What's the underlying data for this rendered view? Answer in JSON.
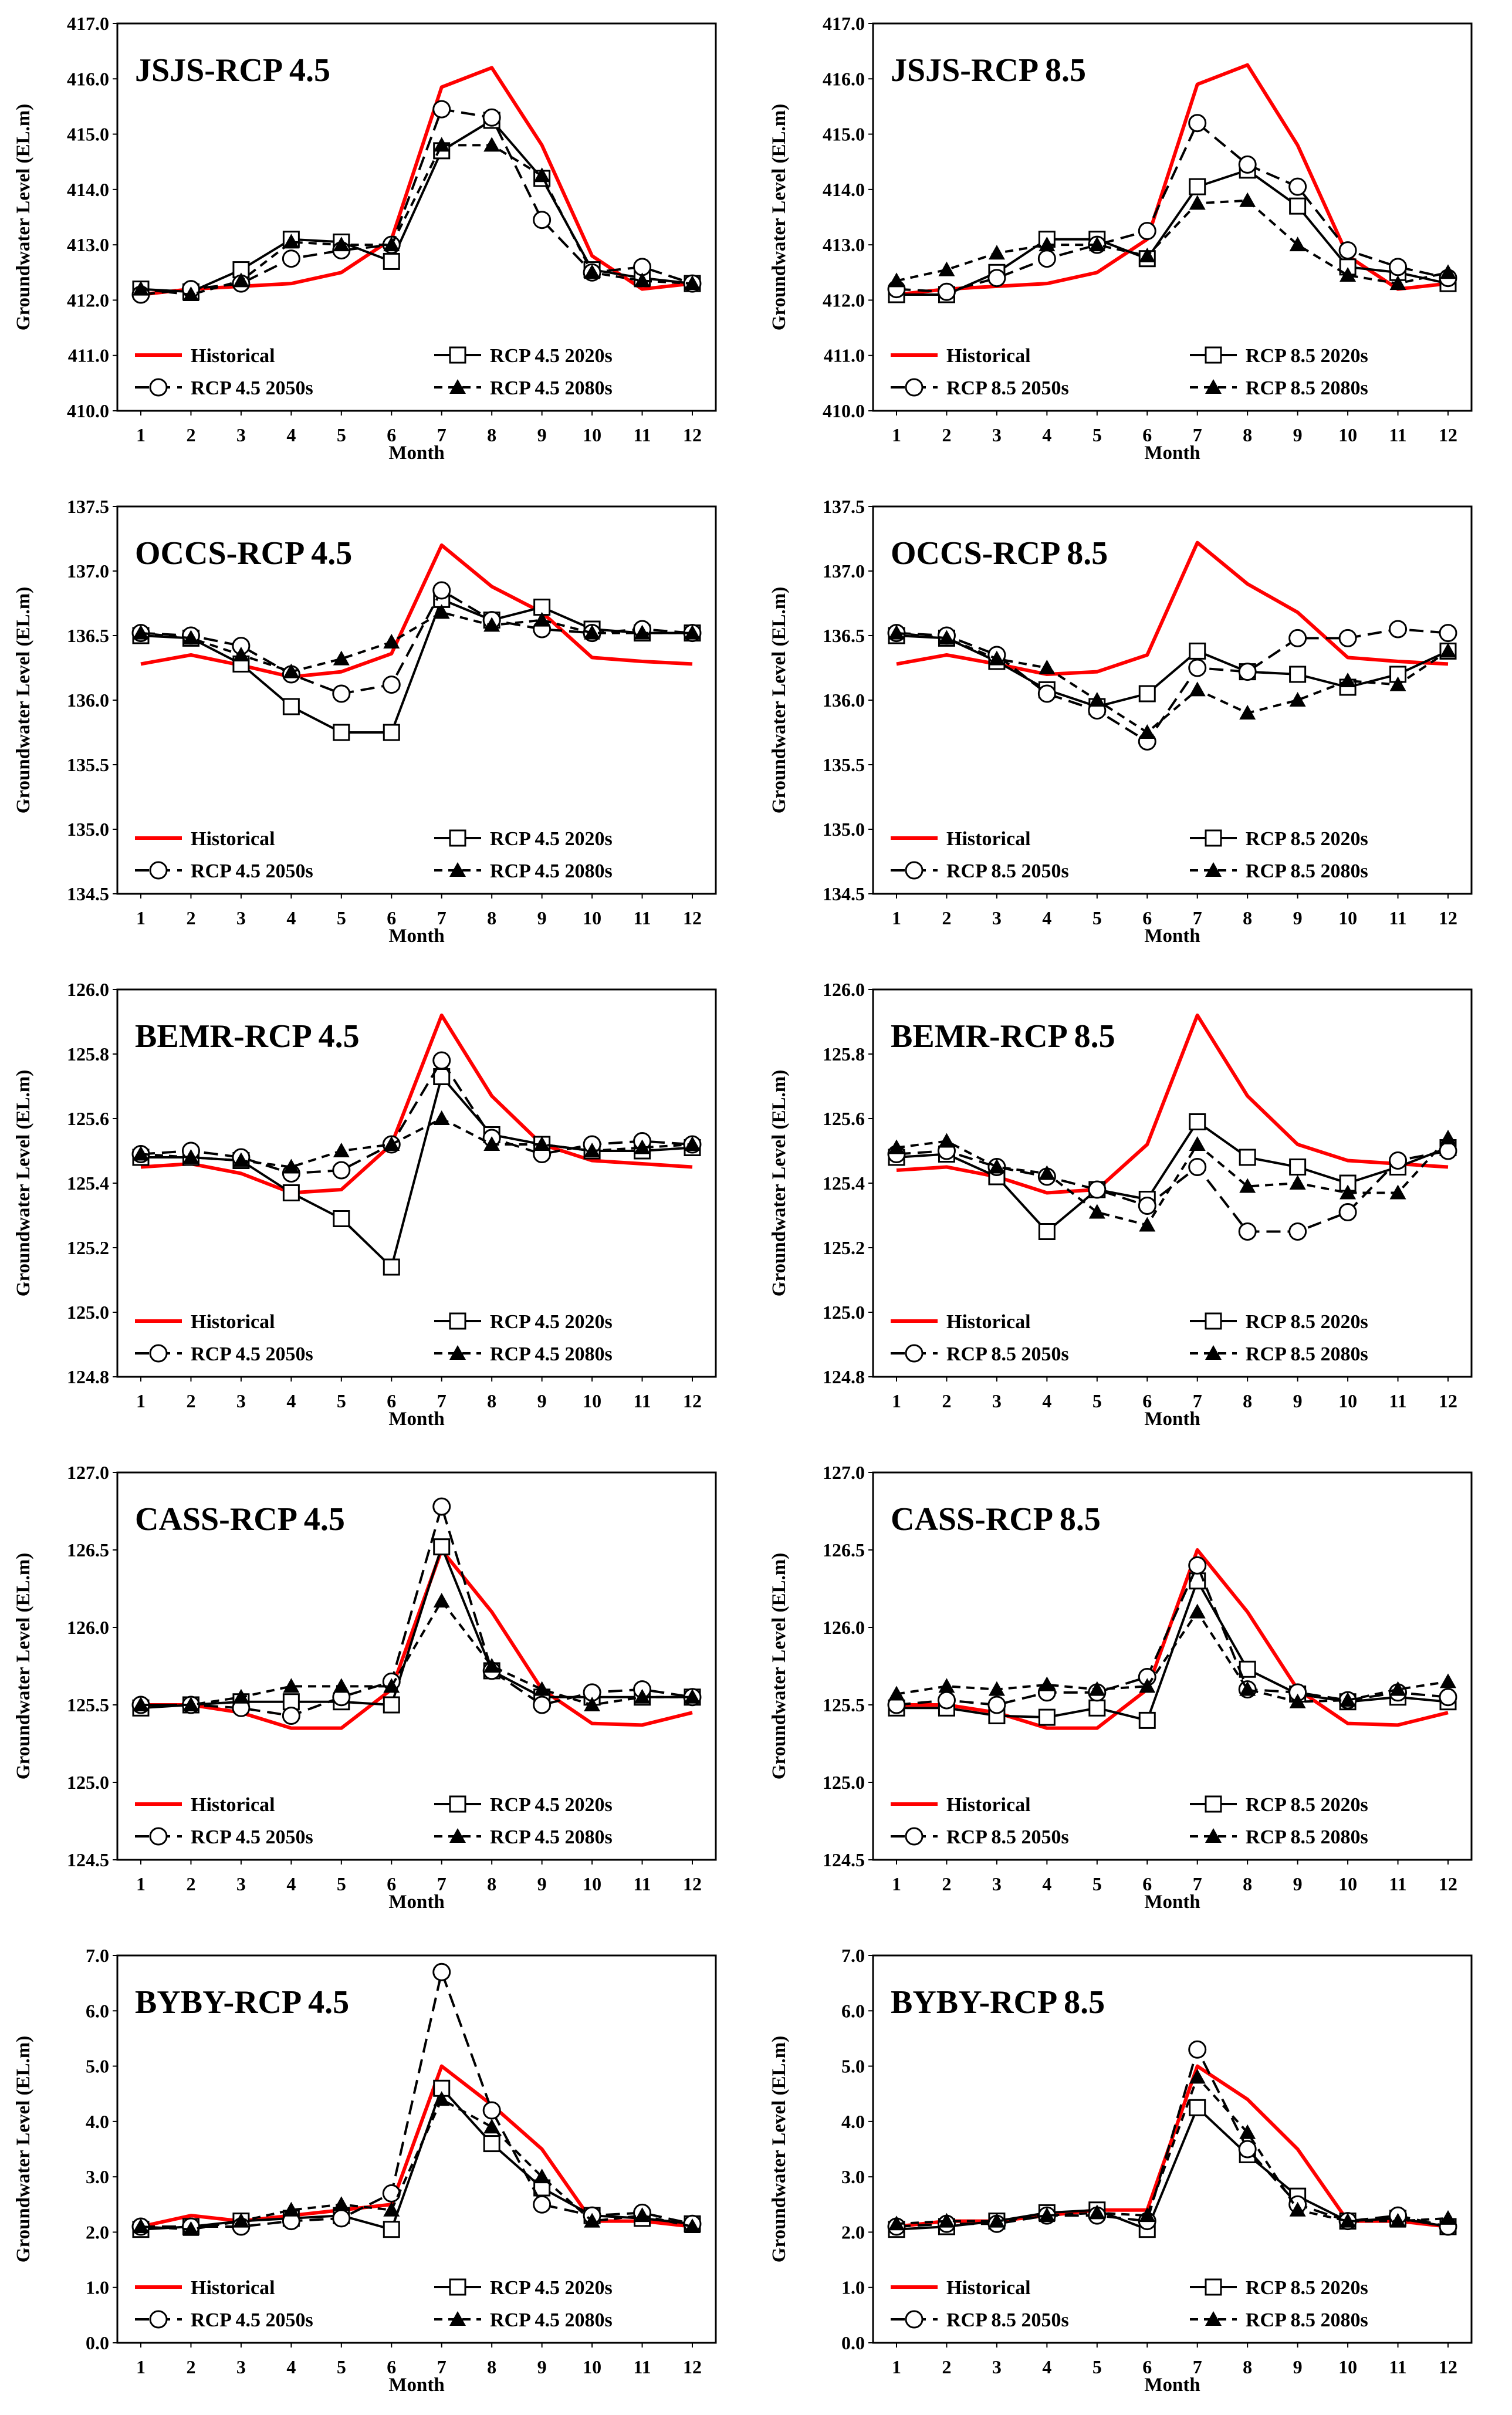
{
  "shared": {
    "xlabel": "Month",
    "ylabel": "Groundwater Level (EL.m)",
    "months": [
      "1",
      "2",
      "3",
      "4",
      "5",
      "6",
      "7",
      "8",
      "9",
      "10",
      "11",
      "12"
    ]
  },
  "colors": {
    "historical": "#ff0000",
    "projection": "#000000"
  },
  "chart_data": [
    {
      "type": "line",
      "title": "JSJS-RCP 4.5",
      "ylim": [
        410.0,
        417.0
      ],
      "yticks": [
        "410.0",
        "411.0",
        "412.0",
        "413.0",
        "414.0",
        "415.0",
        "416.0",
        "417.0"
      ],
      "categories": [
        "1",
        "2",
        "3",
        "4",
        "5",
        "6",
        "7",
        "8",
        "9",
        "10",
        "11",
        "12"
      ],
      "legend": [
        "Historical",
        "RCP 4.5 2020s",
        "RCP 4.5 2050s",
        "RCP 4.5 2080s"
      ],
      "series": [
        {
          "name": "Historical",
          "values": [
            412.1,
            412.2,
            412.25,
            412.3,
            412.5,
            413.1,
            415.85,
            416.2,
            414.8,
            412.8,
            412.2,
            412.3
          ]
        },
        {
          "name": "RCP 4.5 2020s",
          "values": [
            412.2,
            412.15,
            412.55,
            413.1,
            413.05,
            412.7,
            414.7,
            415.25,
            414.2,
            412.55,
            412.4,
            412.3
          ]
        },
        {
          "name": "RCP 4.5 2050s",
          "values": [
            412.1,
            412.2,
            412.3,
            412.75,
            412.9,
            413.0,
            415.45,
            415.3,
            413.45,
            412.5,
            412.6,
            412.3
          ]
        },
        {
          "name": "RCP 4.5 2080s",
          "values": [
            412.2,
            412.1,
            412.35,
            413.05,
            413.0,
            413.0,
            414.8,
            414.8,
            414.25,
            412.5,
            412.35,
            412.3
          ]
        }
      ]
    },
    {
      "type": "line",
      "title": "JSJS-RCP 8.5",
      "ylim": [
        410.0,
        417.0
      ],
      "yticks": [
        "410.0",
        "411.0",
        "412.0",
        "413.0",
        "414.0",
        "415.0",
        "416.0",
        "417.0"
      ],
      "categories": [
        "1",
        "2",
        "3",
        "4",
        "5",
        "6",
        "7",
        "8",
        "9",
        "10",
        "11",
        "12"
      ],
      "legend": [
        "Historical",
        "RCP 8.5 2020s",
        "RCP 8.5 2050s",
        "RCP 8.5 2080s"
      ],
      "series": [
        {
          "name": "Historical",
          "values": [
            412.1,
            412.2,
            412.25,
            412.3,
            412.5,
            413.1,
            415.9,
            416.25,
            414.8,
            412.8,
            412.2,
            412.3
          ]
        },
        {
          "name": "RCP 8.5 2020s",
          "values": [
            412.1,
            412.1,
            412.5,
            413.1,
            413.1,
            412.75,
            414.05,
            414.35,
            413.7,
            412.6,
            412.5,
            412.3
          ]
        },
        {
          "name": "RCP 8.5 2050s",
          "values": [
            412.2,
            412.15,
            412.4,
            412.75,
            413.0,
            413.25,
            415.2,
            414.45,
            414.05,
            412.9,
            412.6,
            412.4
          ]
        },
        {
          "name": "RCP 8.5 2080s",
          "values": [
            412.35,
            412.55,
            412.85,
            413.0,
            413.0,
            412.8,
            413.75,
            413.8,
            413.0,
            412.45,
            412.3,
            412.5
          ]
        }
      ]
    },
    {
      "type": "line",
      "title": "OCCS-RCP 4.5",
      "ylim": [
        134.5,
        137.5
      ],
      "yticks": [
        "134.5",
        "135.0",
        "135.5",
        "136.0",
        "136.5",
        "137.0",
        "137.5"
      ],
      "categories": [
        "1",
        "2",
        "3",
        "4",
        "5",
        "6",
        "7",
        "8",
        "9",
        "10",
        "11",
        "12"
      ],
      "legend": [
        "Historical",
        "RCP 4.5 2020s",
        "RCP 4.5 2050s",
        "RCP 4.5 2080s"
      ],
      "series": [
        {
          "name": "Historical",
          "values": [
            136.28,
            136.35,
            136.27,
            136.18,
            136.22,
            136.36,
            137.2,
            136.88,
            136.68,
            136.33,
            136.3,
            136.28
          ]
        },
        {
          "name": "RCP 4.5 2020s",
          "values": [
            136.5,
            136.48,
            136.28,
            135.95,
            135.75,
            135.75,
            136.78,
            136.62,
            136.72,
            136.55,
            136.52,
            136.52
          ]
        },
        {
          "name": "RCP 4.5 2050s",
          "values": [
            136.52,
            136.5,
            136.42,
            136.2,
            136.05,
            136.12,
            136.85,
            136.62,
            136.55,
            136.52,
            136.55,
            136.52
          ]
        },
        {
          "name": "RCP 4.5 2080s",
          "values": [
            136.52,
            136.48,
            136.35,
            136.22,
            136.32,
            136.45,
            136.68,
            136.58,
            136.62,
            136.52,
            136.52,
            136.52
          ]
        }
      ]
    },
    {
      "type": "line",
      "title": "OCCS-RCP 8.5",
      "ylim": [
        134.5,
        137.5
      ],
      "yticks": [
        "134.5",
        "135.0",
        "135.5",
        "136.0",
        "136.5",
        "137.0",
        "137.5"
      ],
      "categories": [
        "1",
        "2",
        "3",
        "4",
        "5",
        "6",
        "7",
        "8",
        "9",
        "10",
        "11",
        "12"
      ],
      "legend": [
        "Historical",
        "RCP 8.5 2020s",
        "RCP 8.5 2050s",
        "RCP 8.5 2080s"
      ],
      "series": [
        {
          "name": "Historical",
          "values": [
            136.28,
            136.35,
            136.28,
            136.2,
            136.22,
            136.35,
            137.22,
            136.9,
            136.68,
            136.33,
            136.3,
            136.28
          ]
        },
        {
          "name": "RCP 8.5 2020s",
          "values": [
            136.5,
            136.48,
            136.3,
            136.08,
            135.95,
            136.05,
            136.38,
            136.22,
            136.2,
            136.1,
            136.2,
            136.38
          ]
        },
        {
          "name": "RCP 8.5 2050s",
          "values": [
            136.52,
            136.5,
            136.35,
            136.05,
            135.92,
            135.68,
            136.25,
            136.22,
            136.48,
            136.48,
            136.55,
            136.52
          ]
        },
        {
          "name": "RCP 8.5 2080s",
          "values": [
            136.52,
            136.48,
            136.32,
            136.25,
            136.0,
            135.75,
            136.08,
            135.9,
            136.0,
            136.15,
            136.12,
            136.38
          ]
        }
      ]
    },
    {
      "type": "line",
      "title": "BEMR-RCP 4.5",
      "ylim": [
        124.8,
        126.0
      ],
      "yticks": [
        "124.8",
        "125.0",
        "125.2",
        "125.4",
        "125.6",
        "125.8",
        "126.0"
      ],
      "categories": [
        "1",
        "2",
        "3",
        "4",
        "5",
        "6",
        "7",
        "8",
        "9",
        "10",
        "11",
        "12"
      ],
      "legend": [
        "Historical",
        "RCP 4.5 2020s",
        "RCP 4.5 2050s",
        "RCP 4.5 2080s"
      ],
      "series": [
        {
          "name": "Historical",
          "values": [
            125.45,
            125.46,
            125.43,
            125.37,
            125.38,
            125.52,
            125.92,
            125.67,
            125.52,
            125.47,
            125.46,
            125.45
          ]
        },
        {
          "name": "RCP 4.5 2020s",
          "values": [
            125.48,
            125.48,
            125.47,
            125.37,
            125.29,
            125.14,
            125.73,
            125.55,
            125.52,
            125.5,
            125.5,
            125.51
          ]
        },
        {
          "name": "RCP 4.5 2050s",
          "values": [
            125.49,
            125.5,
            125.48,
            125.43,
            125.44,
            125.52,
            125.78,
            125.54,
            125.49,
            125.52,
            125.53,
            125.52
          ]
        },
        {
          "name": "RCP 4.5 2080s",
          "values": [
            125.49,
            125.48,
            125.47,
            125.45,
            125.5,
            125.52,
            125.6,
            125.52,
            125.52,
            125.5,
            125.51,
            125.52
          ]
        }
      ]
    },
    {
      "type": "line",
      "title": "BEMR-RCP 8.5",
      "ylim": [
        124.8,
        126.0
      ],
      "yticks": [
        "124.8",
        "125.0",
        "125.2",
        "125.4",
        "125.6",
        "125.8",
        "126.0"
      ],
      "categories": [
        "1",
        "2",
        "3",
        "4",
        "5",
        "6",
        "7",
        "8",
        "9",
        "10",
        "11",
        "12"
      ],
      "legend": [
        "Historical",
        "RCP 8.5 2020s",
        "RCP 8.5 2050s",
        "RCP 8.5 2080s"
      ],
      "series": [
        {
          "name": "Historical",
          "values": [
            125.44,
            125.45,
            125.42,
            125.37,
            125.38,
            125.52,
            125.92,
            125.67,
            125.52,
            125.47,
            125.46,
            125.45
          ]
        },
        {
          "name": "RCP 8.5 2020s",
          "values": [
            125.48,
            125.49,
            125.42,
            125.25,
            125.38,
            125.35,
            125.59,
            125.48,
            125.45,
            125.4,
            125.45,
            125.51
          ]
        },
        {
          "name": "RCP 8.5 2050s",
          "values": [
            125.49,
            125.5,
            125.45,
            125.42,
            125.38,
            125.33,
            125.45,
            125.25,
            125.25,
            125.31,
            125.47,
            125.5
          ]
        },
        {
          "name": "RCP 8.5 2080s",
          "values": [
            125.51,
            125.53,
            125.45,
            125.43,
            125.31,
            125.27,
            125.52,
            125.39,
            125.4,
            125.37,
            125.37,
            125.54
          ]
        }
      ]
    },
    {
      "type": "line",
      "title": "CASS-RCP 4.5",
      "ylim": [
        124.5,
        127.0
      ],
      "yticks": [
        "124.5",
        "125.0",
        "125.5",
        "126.0",
        "126.5",
        "127.0"
      ],
      "categories": [
        "1",
        "2",
        "3",
        "4",
        "5",
        "6",
        "7",
        "8",
        "9",
        "10",
        "11",
        "12"
      ],
      "legend": [
        "Historical",
        "RCP 4.5 2020s",
        "RCP 4.5 2050s",
        "RCP 4.5 2080s"
      ],
      "series": [
        {
          "name": "Historical",
          "values": [
            125.5,
            125.5,
            125.45,
            125.35,
            125.35,
            125.6,
            126.5,
            126.1,
            125.6,
            125.38,
            125.37,
            125.45
          ]
        },
        {
          "name": "RCP 4.5 2020s",
          "values": [
            125.48,
            125.5,
            125.52,
            125.52,
            125.52,
            125.5,
            126.52,
            125.72,
            125.55,
            125.55,
            125.55,
            125.55
          ]
        },
        {
          "name": "RCP 4.5 2050s",
          "values": [
            125.5,
            125.5,
            125.48,
            125.43,
            125.55,
            125.65,
            126.78,
            125.72,
            125.5,
            125.58,
            125.6,
            125.55
          ]
        },
        {
          "name": "RCP 4.5 2080s",
          "values": [
            125.5,
            125.5,
            125.55,
            125.62,
            125.62,
            125.62,
            126.17,
            125.75,
            125.6,
            125.5,
            125.55,
            125.55
          ]
        }
      ]
    },
    {
      "type": "line",
      "title": "CASS-RCP 8.5",
      "ylim": [
        124.5,
        127.0
      ],
      "yticks": [
        "124.5",
        "125.0",
        "125.5",
        "126.0",
        "126.5",
        "127.0"
      ],
      "categories": [
        "1",
        "2",
        "3",
        "4",
        "5",
        "6",
        "7",
        "8",
        "9",
        "10",
        "11",
        "12"
      ],
      "legend": [
        "Historical",
        "RCP 8.5 2020s",
        "RCP 8.5 2050s",
        "RCP 8.5 2080s"
      ],
      "series": [
        {
          "name": "Historical",
          "values": [
            125.5,
            125.5,
            125.45,
            125.35,
            125.35,
            125.6,
            126.5,
            126.1,
            125.6,
            125.38,
            125.37,
            125.45
          ]
        },
        {
          "name": "RCP 8.5 2020s",
          "values": [
            125.48,
            125.48,
            125.43,
            125.42,
            125.48,
            125.4,
            126.3,
            125.73,
            125.57,
            125.52,
            125.55,
            125.52
          ]
        },
        {
          "name": "RCP 8.5 2050s",
          "values": [
            125.5,
            125.53,
            125.5,
            125.58,
            125.58,
            125.68,
            126.4,
            125.6,
            125.58,
            125.53,
            125.58,
            125.55
          ]
        },
        {
          "name": "RCP 8.5 2080s",
          "values": [
            125.57,
            125.62,
            125.6,
            125.63,
            125.6,
            125.62,
            126.1,
            125.6,
            125.52,
            125.53,
            125.6,
            125.65
          ]
        }
      ]
    },
    {
      "type": "line",
      "title": "BYBY-RCP 4.5",
      "ylim": [
        0.0,
        7.0
      ],
      "yticks": [
        "0.0",
        "1.0",
        "2.0",
        "3.0",
        "4.0",
        "5.0",
        "6.0",
        "7.0"
      ],
      "categories": [
        "1",
        "2",
        "3",
        "4",
        "5",
        "6",
        "7",
        "8",
        "9",
        "10",
        "11",
        "12"
      ],
      "legend": [
        "Historical",
        "RCP 4.5 2020s",
        "RCP 4.5 2050s",
        "RCP 4.5 2080s"
      ],
      "series": [
        {
          "name": "Historical",
          "values": [
            2.1,
            2.3,
            2.2,
            2.3,
            2.4,
            2.5,
            5.0,
            4.3,
            3.5,
            2.2,
            2.2,
            2.1
          ]
        },
        {
          "name": "RCP 4.5 2020s",
          "values": [
            2.05,
            2.1,
            2.2,
            2.25,
            2.3,
            2.05,
            4.6,
            3.6,
            2.8,
            2.3,
            2.25,
            2.15
          ]
        },
        {
          "name": "RCP 4.5 2050s",
          "values": [
            2.1,
            2.1,
            2.1,
            2.2,
            2.25,
            2.7,
            6.7,
            4.2,
            2.5,
            2.3,
            2.35,
            2.15
          ]
        },
        {
          "name": "RCP 4.5 2080s",
          "values": [
            2.1,
            2.05,
            2.2,
            2.4,
            2.5,
            2.4,
            4.4,
            3.9,
            3.0,
            2.2,
            2.3,
            2.1
          ]
        }
      ]
    },
    {
      "type": "line",
      "title": "BYBY-RCP 8.5",
      "ylim": [
        0.0,
        7.0
      ],
      "yticks": [
        "0.0",
        "1.0",
        "2.0",
        "3.0",
        "4.0",
        "5.0",
        "6.0",
        "7.0"
      ],
      "categories": [
        "1",
        "2",
        "3",
        "4",
        "5",
        "6",
        "7",
        "8",
        "9",
        "10",
        "11",
        "12"
      ],
      "legend": [
        "Historical",
        "RCP 8.5 2020s",
        "RCP 8.5 2050s",
        "RCP 8.5 2080s"
      ],
      "series": [
        {
          "name": "Historical",
          "values": [
            2.1,
            2.2,
            2.2,
            2.3,
            2.4,
            2.4,
            5.0,
            4.4,
            3.5,
            2.2,
            2.2,
            2.1
          ]
        },
        {
          "name": "RCP 8.5 2020s",
          "values": [
            2.05,
            2.1,
            2.2,
            2.35,
            2.4,
            2.05,
            4.25,
            3.4,
            2.65,
            2.2,
            2.25,
            2.1
          ]
        },
        {
          "name": "RCP 8.5 2050s",
          "values": [
            2.1,
            2.15,
            2.15,
            2.3,
            2.3,
            2.2,
            5.3,
            3.5,
            2.5,
            2.2,
            2.3,
            2.1
          ]
        },
        {
          "name": "RCP 8.5 2080s",
          "values": [
            2.15,
            2.2,
            2.2,
            2.3,
            2.35,
            2.3,
            4.8,
            3.8,
            2.4,
            2.2,
            2.2,
            2.25
          ]
        }
      ]
    }
  ]
}
